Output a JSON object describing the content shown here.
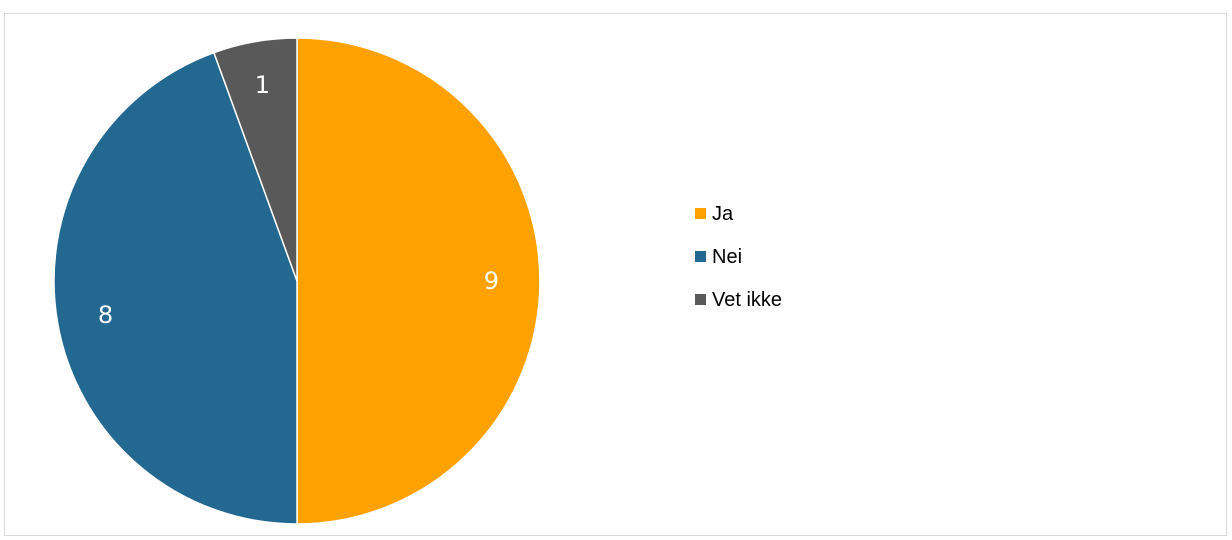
{
  "chart_data": {
    "type": "pie",
    "categories": [
      "Ja",
      "Nei",
      "Vet ikke"
    ],
    "values": [
      9,
      8,
      1
    ],
    "colors": [
      "#ffa100",
      "#226891",
      "#595959"
    ],
    "start_angle_deg": 0,
    "direction": "clockwise",
    "data_labels": [
      "9",
      "8",
      "1"
    ],
    "legend": {
      "placement": "right",
      "entries": [
        "Ja",
        "Nei",
        "Vet ikke"
      ]
    },
    "title": ""
  }
}
